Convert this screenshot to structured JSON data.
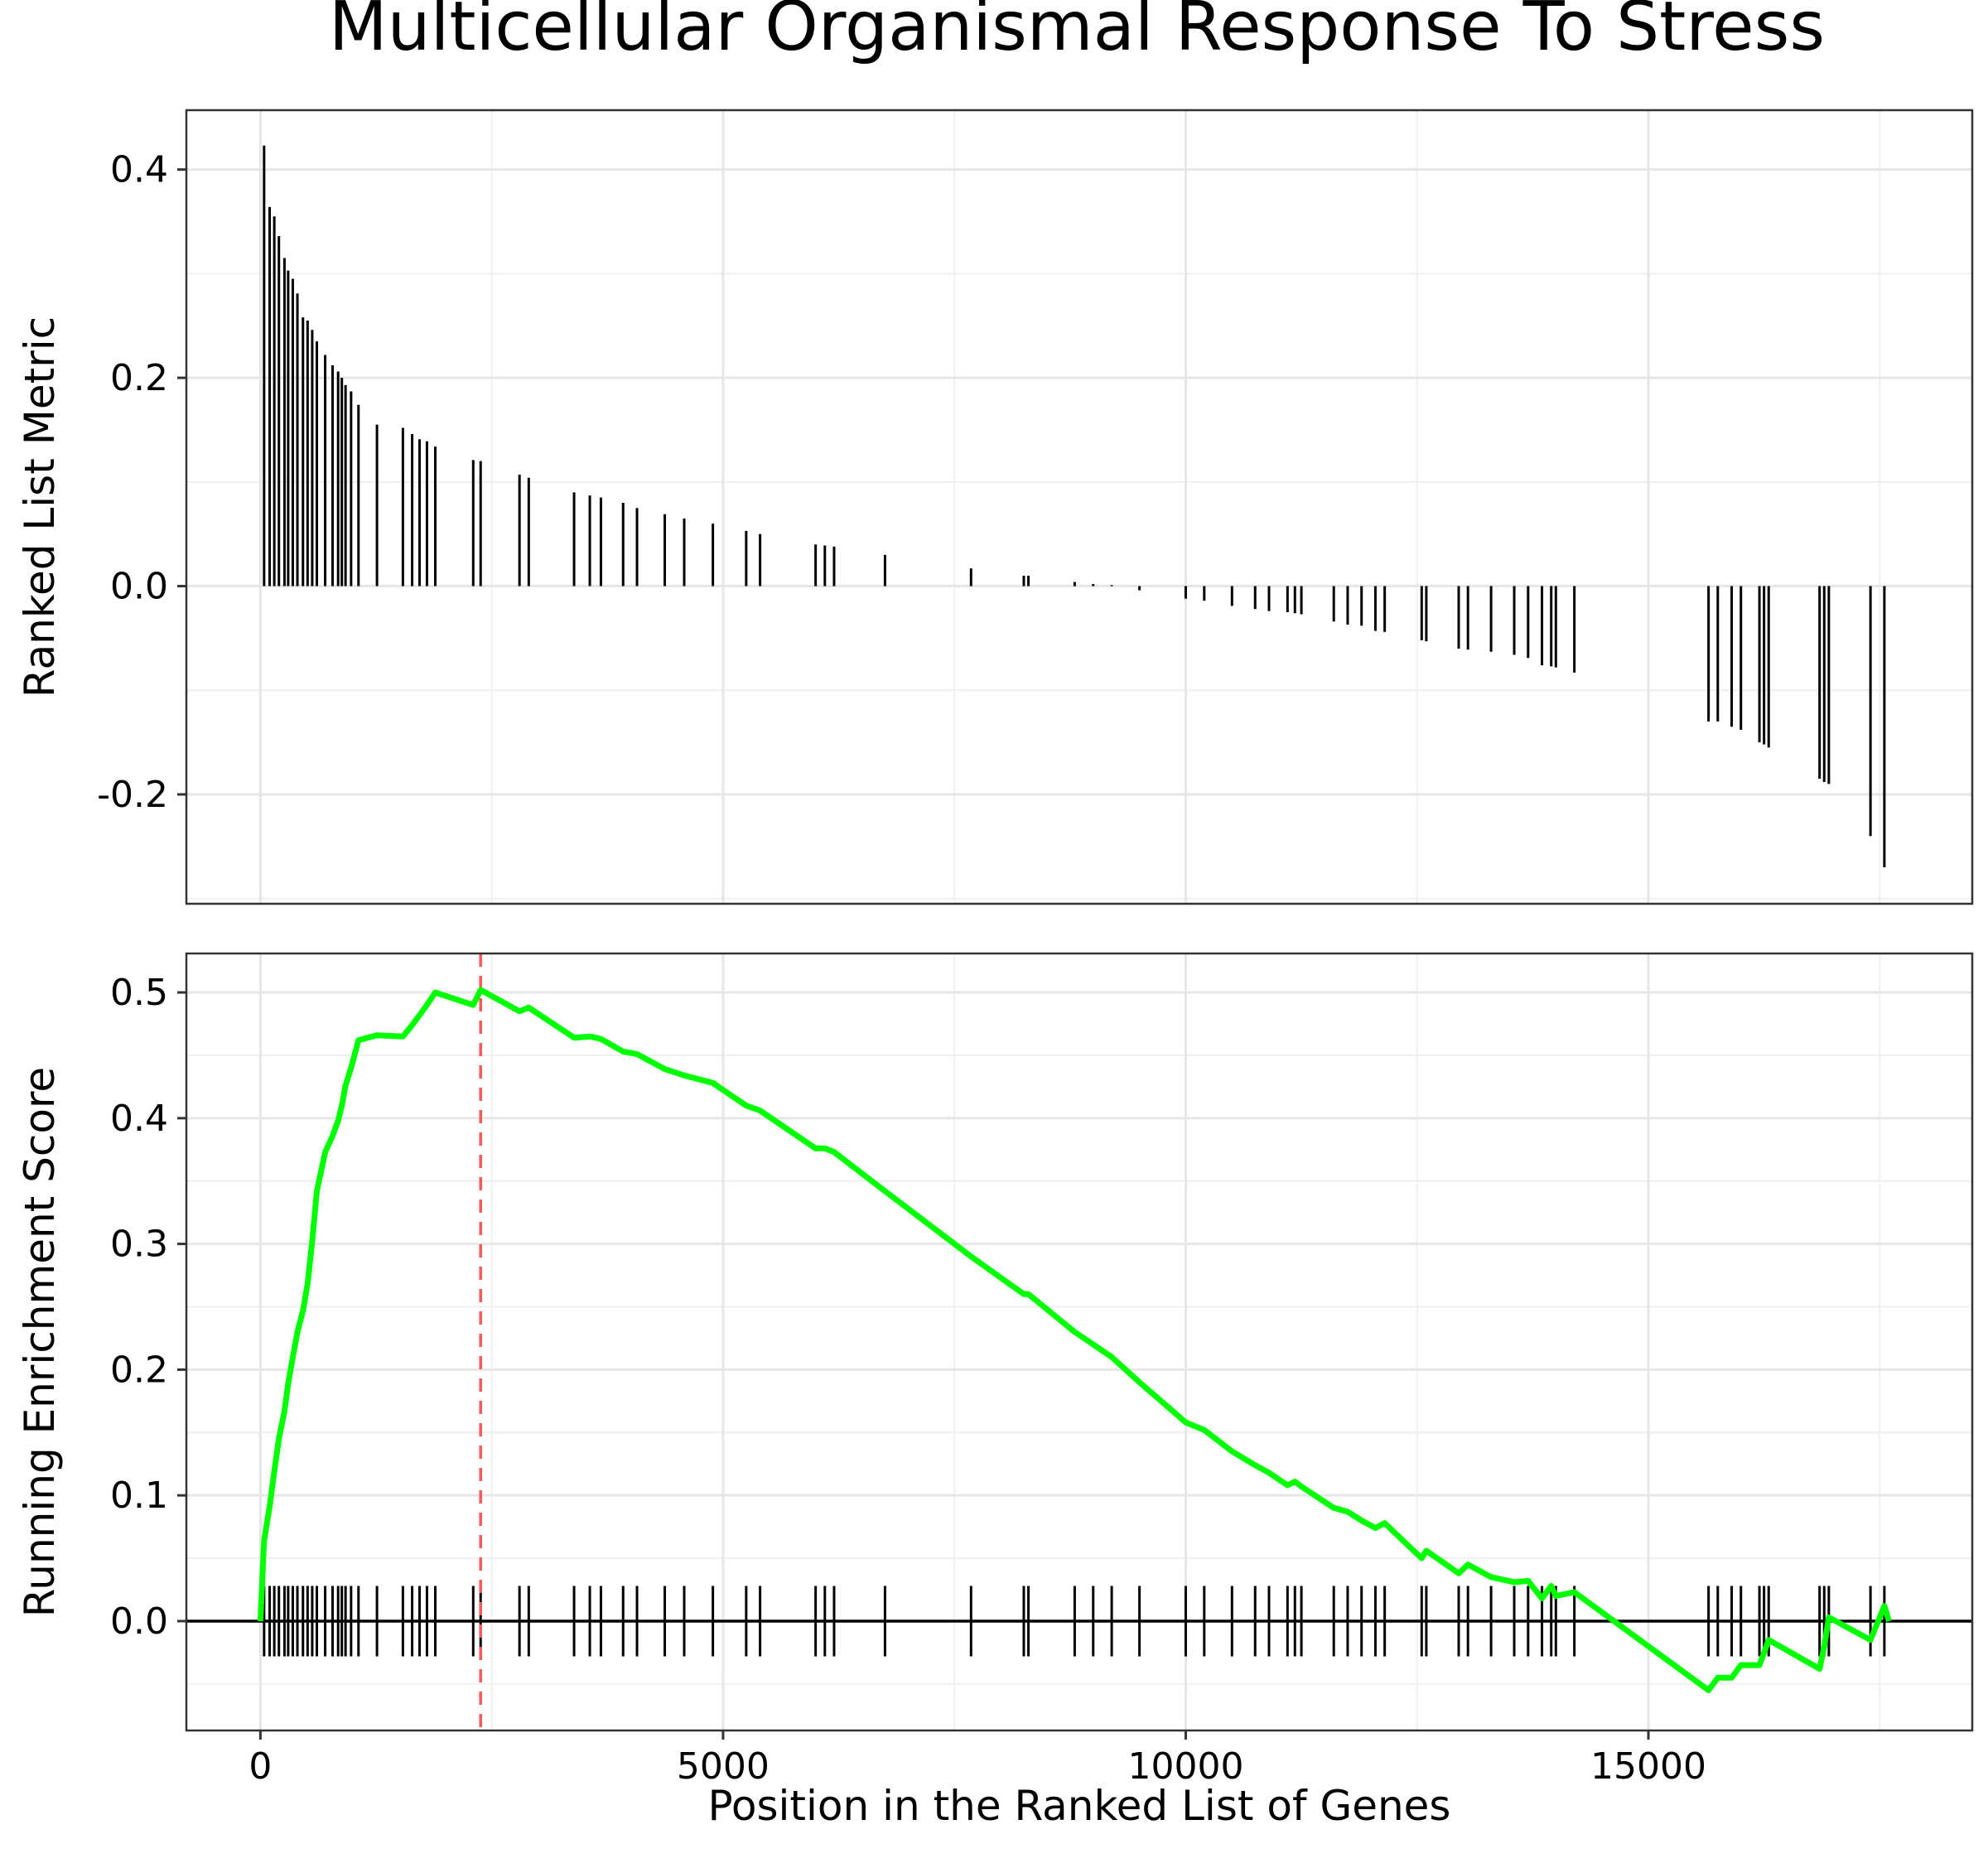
{
  "chart_data": {
    "type": "line",
    "title": "Multicellular Organismal Response To Stress",
    "xlabel": "Position in the Ranked List of Genes",
    "xlim": [
      -800,
      18500
    ],
    "x_ticks": [
      0,
      5000,
      10000,
      15000
    ],
    "x_tick_labels": [
      "0",
      "5000",
      "10000",
      "15000"
    ],
    "peak_position": 2380,
    "colors": {
      "running_score": "#00ff00",
      "peak_line": "#ff5a5a",
      "bars": "#000000",
      "grid": "#e6e6e6"
    },
    "panels": [
      {
        "id": "ranked-metric",
        "type": "bar",
        "ylabel": "Ranked List Metric",
        "ylim": [
          -0.305,
          0.457
        ],
        "y_ticks": [
          -0.2,
          0.0,
          0.2,
          0.4
        ],
        "y_tick_labels": [
          "-0.2",
          "0.0",
          "0.2",
          "0.4"
        ],
        "series": [
          {
            "x": [
              40,
              100,
              150,
              200,
              260,
              300,
              350,
              400,
              460,
              510,
              560,
              610,
              700,
              780,
              840,
              880,
              920,
              980,
              1060,
              1260,
              1540,
              1640,
              1720,
              1800,
              1890,
              2300,
              2380,
              2800,
              2900,
              3390,
              3560,
              3680,
              3920,
              4070,
              4370,
              4580,
              4890,
              5250,
              5400,
              6000,
              6100,
              6200,
              6750,
              7680,
              8250,
              8300,
              8800,
              9000,
              9200,
              9500,
              10000,
              10200,
              10500,
              10750,
              10900,
              11100,
              11180,
              11250,
              11600,
              11750,
              11900,
              12050,
              12150,
              12550,
              12600,
              12950,
              13050,
              13300,
              13550,
              13700,
              13850,
              13950,
              14000,
              14200,
              15650,
              15750,
              15900,
              16000,
              16200,
              16250,
              16300,
              16850,
              16900,
              16950,
              17400,
              17550
            ],
            "values": [
              0.423,
              0.364,
              0.355,
              0.336,
              0.315,
              0.303,
              0.295,
              0.281,
              0.258,
              0.255,
              0.246,
              0.235,
              0.222,
              0.212,
              0.206,
              0.2,
              0.193,
              0.187,
              0.174,
              0.155,
              0.152,
              0.146,
              0.141,
              0.139,
              0.134,
              0.121,
              0.12,
              0.107,
              0.104,
              0.09,
              0.087,
              0.085,
              0.08,
              0.075,
              0.069,
              0.065,
              0.06,
              0.053,
              0.05,
              0.04,
              0.039,
              0.038,
              0.03,
              0.017,
              0.01,
              0.01,
              0.004,
              0.002,
              0.001,
              -0.004,
              -0.012,
              -0.014,
              -0.019,
              -0.022,
              -0.024,
              -0.025,
              -0.026,
              -0.027,
              -0.034,
              -0.037,
              -0.038,
              -0.043,
              -0.044,
              -0.052,
              -0.053,
              -0.06,
              -0.061,
              -0.063,
              -0.066,
              -0.069,
              -0.076,
              -0.077,
              -0.078,
              -0.083,
              -0.13,
              -0.13,
              -0.135,
              -0.138,
              -0.15,
              -0.152,
              -0.155,
              -0.185,
              -0.188,
              -0.19,
              -0.24,
              -0.27
            ]
          }
        ]
      },
      {
        "id": "running-enrichment",
        "type": "line",
        "ylabel": "Running Enrichment Score",
        "ylim": [
          -0.087,
          0.531
        ],
        "y_ticks": [
          0.0,
          0.1,
          0.2,
          0.3,
          0.4,
          0.5
        ],
        "y_tick_labels": [
          "0.0",
          "0.1",
          "0.2",
          "0.3",
          "0.4",
          "0.5"
        ],
        "hits_band": [
          -0.028,
          0.028
        ],
        "series": [
          {
            "x": [
              0,
              40,
              100,
              150,
              200,
              260,
              300,
              350,
              400,
              460,
              510,
              560,
              610,
              700,
              780,
              840,
              880,
              920,
              980,
              1060,
              1260,
              1540,
              1640,
              1720,
              1800,
              1890,
              2300,
              2380,
              2800,
              2900,
              3390,
              3560,
              3680,
              3920,
              4070,
              4370,
              4580,
              4890,
              5250,
              5400,
              6000,
              6100,
              6200,
              6750,
              7680,
              8250,
              8300,
              8800,
              9000,
              9200,
              9500,
              10000,
              10200,
              10500,
              10750,
              10900,
              11100,
              11180,
              11250,
              11600,
              11750,
              11900,
              12050,
              12150,
              12550,
              12600,
              12950,
              13050,
              13300,
              13550,
              13700,
              13850,
              13950,
              14000,
              14200,
              15650,
              15750,
              15900,
              16000,
              16200,
              16250,
              16300,
              16850,
              16900,
              16950,
              17400,
              17550,
              17600
            ],
            "values": [
              0.0,
              0.064,
              0.091,
              0.119,
              0.145,
              0.167,
              0.189,
              0.21,
              0.23,
              0.247,
              0.268,
              0.302,
              0.342,
              0.373,
              0.386,
              0.398,
              0.41,
              0.426,
              0.44,
              0.462,
              0.466,
              0.465,
              0.474,
              0.482,
              0.49,
              0.5,
              0.49,
              0.502,
              0.485,
              0.488,
              0.464,
              0.465,
              0.463,
              0.453,
              0.451,
              0.439,
              0.434,
              0.428,
              0.41,
              0.406,
              0.376,
              0.376,
              0.373,
              0.342,
              0.29,
              0.26,
              0.26,
              0.23,
              0.22,
              0.21,
              0.19,
              0.158,
              0.152,
              0.135,
              0.124,
              0.118,
              0.108,
              0.111,
              0.107,
              0.09,
              0.087,
              0.08,
              0.074,
              0.078,
              0.05,
              0.056,
              0.038,
              0.045,
              0.035,
              0.031,
              0.032,
              0.018,
              0.028,
              0.02,
              0.023,
              -0.055,
              -0.045,
              -0.045,
              -0.035,
              -0.035,
              -0.025,
              -0.015,
              -0.038,
              -0.02,
              0.003,
              -0.015,
              0.012,
              0.0
            ]
          }
        ]
      }
    ]
  }
}
